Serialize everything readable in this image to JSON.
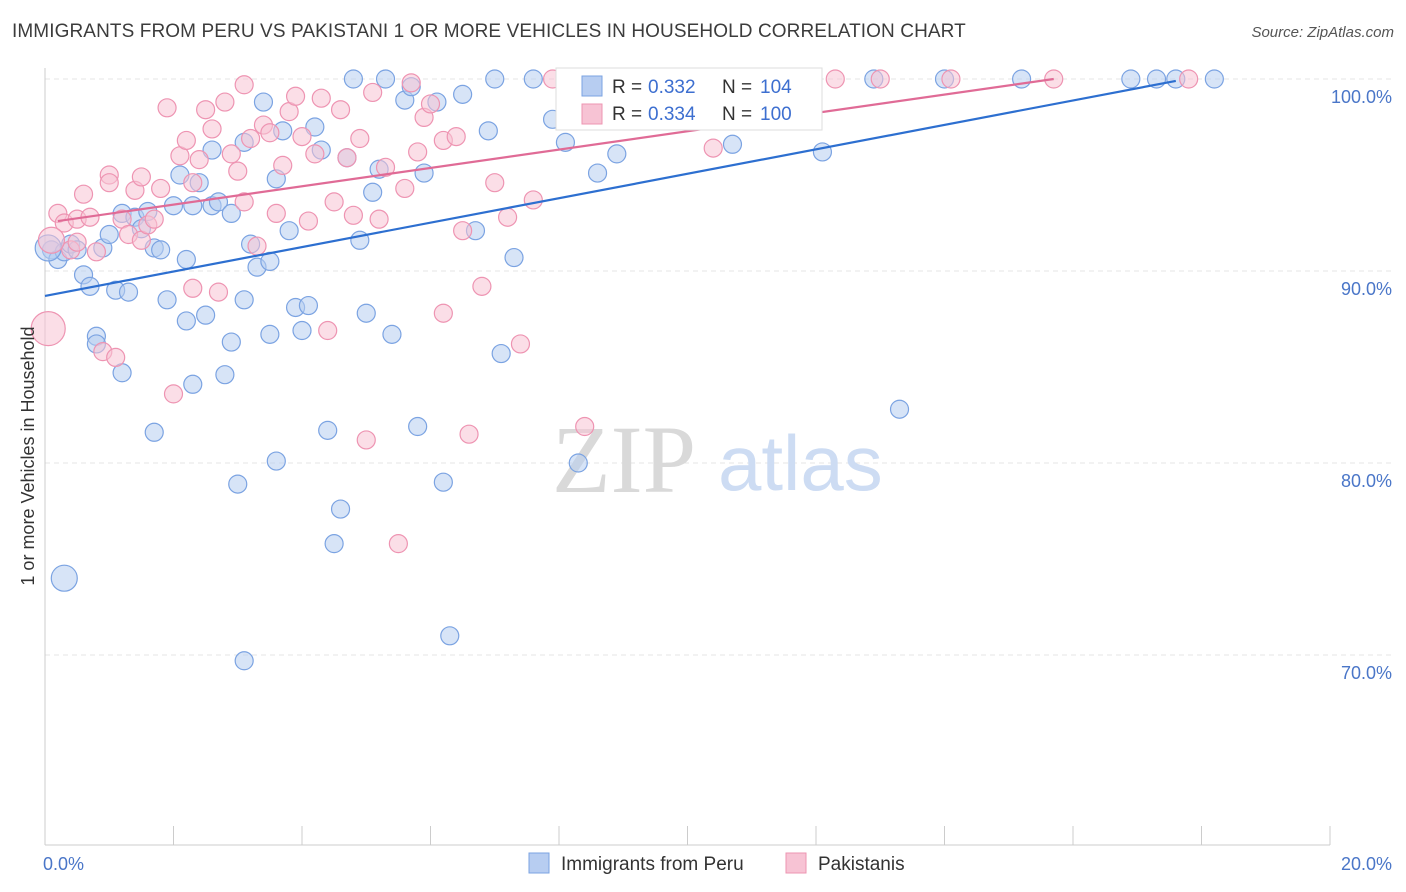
{
  "title": "IMMIGRANTS FROM PERU VS PAKISTANI 1 OR MORE VEHICLES IN HOUSEHOLD CORRELATION CHART",
  "source": "Source: ZipAtlas.com",
  "watermark": {
    "zip": "ZIP",
    "atlas": "atlas"
  },
  "chart_data": {
    "type": "scatter",
    "ylabel": "1 or more Vehicles in Household",
    "xlim": [
      0,
      20
    ],
    "ylim": [
      60,
      100
    ],
    "y_tick_values": [
      70,
      80,
      90,
      100
    ],
    "y_tick_labels": [
      "70.0%",
      "80.0%",
      "90.0%",
      "100.0%"
    ],
    "x_tick_labels": [
      "0.0%",
      "20.0%"
    ],
    "grid": true,
    "legend_position": "top-center (inset)",
    "series": [
      {
        "name": "Immigrants from Peru",
        "color": "#7ba3e2",
        "fill": "#b7cdf1",
        "trend_color": "#2d6fd0",
        "R": "0.332",
        "N": "104",
        "trend": {
          "x": [
            0.0,
            17.6
          ],
          "y": [
            88.7,
            99.9
          ]
        },
        "points": [
          [
            0.1,
            91.1
          ],
          [
            0.2,
            90.6
          ],
          [
            0.3,
            91.0
          ],
          [
            0.4,
            91.4
          ],
          [
            0.5,
            91.1
          ],
          [
            0.6,
            89.8
          ],
          [
            0.7,
            89.2
          ],
          [
            0.8,
            86.6
          ],
          [
            0.8,
            86.2
          ],
          [
            0.9,
            91.2
          ],
          [
            1.0,
            91.9
          ],
          [
            1.1,
            89.0
          ],
          [
            1.2,
            93.0
          ],
          [
            1.2,
            84.7
          ],
          [
            1.3,
            88.9
          ],
          [
            1.4,
            92.8
          ],
          [
            1.5,
            92.2
          ],
          [
            1.6,
            93.1
          ],
          [
            1.7,
            91.2
          ],
          [
            1.7,
            81.6
          ],
          [
            1.8,
            91.1
          ],
          [
            1.9,
            88.5
          ],
          [
            2.0,
            93.4
          ],
          [
            2.1,
            95.0
          ],
          [
            2.2,
            90.6
          ],
          [
            2.2,
            87.4
          ],
          [
            2.3,
            93.4
          ],
          [
            2.3,
            84.1
          ],
          [
            2.4,
            94.6
          ],
          [
            2.5,
            87.7
          ],
          [
            2.6,
            93.4
          ],
          [
            2.6,
            96.3
          ],
          [
            2.7,
            93.6
          ],
          [
            2.8,
            84.6
          ],
          [
            2.9,
            93.0
          ],
          [
            2.9,
            86.3
          ],
          [
            3.0,
            78.9
          ],
          [
            3.1,
            88.5
          ],
          [
            3.1,
            69.7
          ],
          [
            3.1,
            96.7
          ],
          [
            3.2,
            91.4
          ],
          [
            3.3,
            90.2
          ],
          [
            3.4,
            98.8
          ],
          [
            3.5,
            86.7
          ],
          [
            3.5,
            90.5
          ],
          [
            3.6,
            94.8
          ],
          [
            3.6,
            80.1
          ],
          [
            3.7,
            97.3
          ],
          [
            3.8,
            92.1
          ],
          [
            3.9,
            88.1
          ],
          [
            4.0,
            86.9
          ],
          [
            4.1,
            88.2
          ],
          [
            4.2,
            97.5
          ],
          [
            4.3,
            96.3
          ],
          [
            4.4,
            81.7
          ],
          [
            4.5,
            75.8
          ],
          [
            4.6,
            77.6
          ],
          [
            4.7,
            95.9
          ],
          [
            4.8,
            100.0
          ],
          [
            4.9,
            91.6
          ],
          [
            5.0,
            87.8
          ],
          [
            5.1,
            94.1
          ],
          [
            5.2,
            95.3
          ],
          [
            5.3,
            100.0
          ],
          [
            5.4,
            86.7
          ],
          [
            5.6,
            98.9
          ],
          [
            5.7,
            99.6
          ],
          [
            5.8,
            81.9
          ],
          [
            5.9,
            95.1
          ],
          [
            6.1,
            98.8
          ],
          [
            6.2,
            79.0
          ],
          [
            6.3,
            71.0
          ],
          [
            6.5,
            99.2
          ],
          [
            6.7,
            92.1
          ],
          [
            6.9,
            97.3
          ],
          [
            7.0,
            100.0
          ],
          [
            7.1,
            85.7
          ],
          [
            7.3,
            90.7
          ],
          [
            7.6,
            100.0
          ],
          [
            7.9,
            97.9
          ],
          [
            8.1,
            96.7
          ],
          [
            8.3,
            80.0
          ],
          [
            8.6,
            95.1
          ],
          [
            8.9,
            96.1
          ],
          [
            9.1,
            100.0
          ],
          [
            9.4,
            100.0
          ],
          [
            9.7,
            100.0
          ],
          [
            10.3,
            100.0
          ],
          [
            10.7,
            96.6
          ],
          [
            11.0,
            100.0
          ],
          [
            11.5,
            100.0
          ],
          [
            12.1,
            96.2
          ],
          [
            12.9,
            100.0
          ],
          [
            13.3,
            82.8
          ],
          [
            14.0,
            100.0
          ],
          [
            15.2,
            100.0
          ],
          [
            16.9,
            100.0
          ],
          [
            17.3,
            100.0
          ],
          [
            17.6,
            100.0
          ],
          [
            18.2,
            100.0
          ]
        ],
        "big_points": [
          [
            0.05,
            91.2
          ],
          [
            0.3,
            74.0
          ]
        ]
      },
      {
        "name": "Pakistanis",
        "color": "#ee94b2",
        "fill": "#f7c3d4",
        "trend_color": "#e06b96",
        "R": "0.334",
        "N": "100",
        "trend": {
          "x": [
            0.2,
            15.7
          ],
          "y": [
            92.6,
            100.0
          ]
        },
        "points": [
          [
            0.2,
            93.0
          ],
          [
            0.3,
            92.5
          ],
          [
            0.4,
            91.1
          ],
          [
            0.5,
            92.7
          ],
          [
            0.5,
            91.5
          ],
          [
            0.6,
            94.0
          ],
          [
            0.7,
            92.8
          ],
          [
            0.8,
            91.0
          ],
          [
            0.9,
            85.8
          ],
          [
            1.0,
            95.0
          ],
          [
            1.0,
            94.6
          ],
          [
            1.1,
            85.5
          ],
          [
            1.2,
            92.7
          ],
          [
            1.3,
            91.9
          ],
          [
            1.4,
            94.2
          ],
          [
            1.5,
            94.9
          ],
          [
            1.5,
            91.6
          ],
          [
            1.6,
            92.4
          ],
          [
            1.7,
            92.7
          ],
          [
            1.8,
            94.3
          ],
          [
            1.9,
            98.5
          ],
          [
            2.0,
            83.6
          ],
          [
            2.1,
            96.0
          ],
          [
            2.2,
            96.8
          ],
          [
            2.3,
            89.1
          ],
          [
            2.3,
            94.6
          ],
          [
            2.4,
            95.8
          ],
          [
            2.5,
            98.4
          ],
          [
            2.6,
            97.4
          ],
          [
            2.7,
            88.9
          ],
          [
            2.8,
            98.8
          ],
          [
            2.9,
            96.1
          ],
          [
            3.0,
            95.2
          ],
          [
            3.1,
            99.7
          ],
          [
            3.1,
            93.6
          ],
          [
            3.2,
            96.9
          ],
          [
            3.3,
            91.3
          ],
          [
            3.4,
            97.6
          ],
          [
            3.5,
            97.2
          ],
          [
            3.6,
            93.0
          ],
          [
            3.7,
            95.5
          ],
          [
            3.8,
            98.3
          ],
          [
            3.9,
            99.1
          ],
          [
            4.0,
            97.0
          ],
          [
            4.1,
            92.6
          ],
          [
            4.2,
            96.1
          ],
          [
            4.3,
            99.0
          ],
          [
            4.4,
            86.9
          ],
          [
            4.5,
            93.6
          ],
          [
            4.6,
            98.4
          ],
          [
            4.7,
            95.9
          ],
          [
            4.8,
            92.9
          ],
          [
            4.9,
            96.9
          ],
          [
            5.0,
            81.2
          ],
          [
            5.1,
            99.3
          ],
          [
            5.2,
            92.7
          ],
          [
            5.3,
            95.4
          ],
          [
            5.5,
            75.8
          ],
          [
            5.6,
            94.3
          ],
          [
            5.7,
            99.8
          ],
          [
            5.8,
            96.2
          ],
          [
            5.9,
            98.0
          ],
          [
            6.0,
            98.7
          ],
          [
            6.2,
            96.8
          ],
          [
            6.4,
            97.0
          ],
          [
            6.5,
            92.1
          ],
          [
            6.6,
            81.5
          ],
          [
            6.8,
            89.2
          ],
          [
            7.0,
            94.6
          ],
          [
            7.2,
            92.8
          ],
          [
            7.4,
            86.2
          ],
          [
            7.6,
            93.7
          ],
          [
            7.9,
            100.0
          ],
          [
            8.1,
            100.0
          ],
          [
            8.4,
            81.9
          ],
          [
            8.7,
            100.0
          ],
          [
            9.0,
            100.0
          ],
          [
            9.4,
            100.0
          ],
          [
            9.8,
            100.0
          ],
          [
            10.4,
            96.4
          ],
          [
            10.9,
            100.0
          ],
          [
            11.5,
            100.0
          ],
          [
            12.3,
            100.0
          ],
          [
            13.0,
            100.0
          ],
          [
            14.1,
            100.0
          ],
          [
            15.7,
            100.0
          ],
          [
            17.8,
            100.0
          ],
          [
            6.2,
            87.8
          ]
        ],
        "big_points": [
          [
            0.05,
            87.0
          ],
          [
            0.1,
            91.6
          ]
        ]
      }
    ]
  }
}
